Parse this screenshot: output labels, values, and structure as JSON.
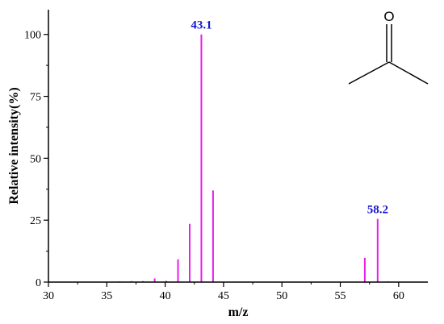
{
  "colors": {
    "bar": "#e81ee8",
    "label": "#1515d0",
    "axis": "#000000"
  },
  "chart_data": {
    "type": "bar",
    "xlabel": "m/z",
    "ylabel": "Relative intensity(%)",
    "xlim": [
      30,
      62.5
    ],
    "ylim": [
      0,
      110
    ],
    "xticks": [
      30,
      35,
      40,
      45,
      50,
      55,
      60
    ],
    "yticks": [
      0,
      25,
      50,
      75,
      100
    ],
    "peaks": [
      {
        "x": 36.1,
        "y": 0.3
      },
      {
        "x": 37.1,
        "y": 0.4
      },
      {
        "x": 38.1,
        "y": 0.4
      },
      {
        "x": 39.1,
        "y": 1.5
      },
      {
        "x": 40.1,
        "y": 0.5
      },
      {
        "x": 41.1,
        "y": 9.2
      },
      {
        "x": 42.1,
        "y": 23.5
      },
      {
        "x": 43.1,
        "y": 100
      },
      {
        "x": 44.1,
        "y": 37
      },
      {
        "x": 57.1,
        "y": 9.8
      },
      {
        "x": 58.2,
        "y": 25.5
      },
      {
        "x": 59.1,
        "y": 0.3
      }
    ],
    "annotations": [
      {
        "text": "43.1",
        "x": 43.1,
        "y": 100
      },
      {
        "text": "58.2",
        "x": 58.2,
        "y": 25.5
      }
    ]
  },
  "structure": {
    "atom_label": "O"
  }
}
